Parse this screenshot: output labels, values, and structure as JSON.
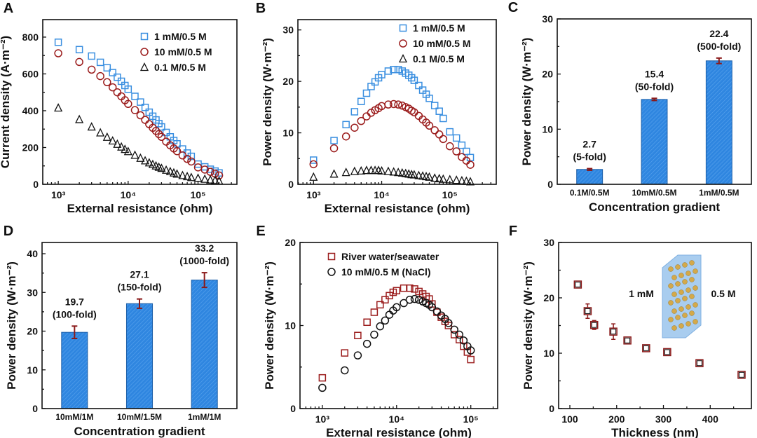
{
  "colors": {
    "blue": "#3a8fe0",
    "red": "#9b1c1c",
    "black": "#111111",
    "bar": "#2f86e0",
    "error": "#8b1a1a"
  },
  "chart_data": [
    {
      "panel": "A",
      "type": "scatter",
      "xscale": "log",
      "xlabel": "External resistance (ohm)",
      "ylabel": "Current density (A·m⁻²)",
      "xlim": [
        600,
        360000
      ],
      "ylim": [
        0,
        895
      ],
      "xticks": [
        {
          "v": 1000,
          "label": "10³"
        },
        {
          "v": 10000,
          "label": "10⁴"
        },
        {
          "v": 100000,
          "label": "10⁵"
        }
      ],
      "yticks": [
        {
          "v": 0,
          "label": "0"
        },
        {
          "v": 200,
          "label": "200"
        },
        {
          "v": 400,
          "label": "400"
        },
        {
          "v": 600,
          "label": "600"
        },
        {
          "v": 800,
          "label": "800"
        }
      ],
      "legend_position": "top-right",
      "x": [
        1000,
        2000,
        3000,
        4000,
        5000,
        6000,
        7000,
        8000,
        9000,
        10000,
        12500,
        15000,
        17500,
        20000,
        22500,
        25000,
        27500,
        30000,
        35000,
        40000,
        45000,
        50000,
        60000,
        70000,
        80000,
        100000,
        125000,
        150000,
        175000,
        200000
      ],
      "series": [
        {
          "name": "1 mM/0.5 M",
          "marker": "square",
          "color": "blue",
          "values": [
            772,
            732,
            697,
            663,
            633,
            607,
            582,
            560,
            537,
            517,
            478,
            447,
            418,
            392,
            370,
            350,
            330,
            312,
            282,
            258,
            238,
            220,
            192,
            170,
            152,
            110,
            95,
            82,
            72,
            62
          ]
        },
        {
          "name": "10 mM/0.5 M",
          "marker": "circle",
          "color": "red",
          "values": [
            712,
            665,
            623,
            588,
            555,
            527,
            500,
            478,
            457,
            437,
            403,
            375,
            350,
            327,
            307,
            290,
            273,
            258,
            232,
            212,
            195,
            180,
            157,
            138,
            124,
            92,
            80,
            68,
            58,
            48
          ]
        },
        {
          "name": "0.1 M/0.5 M",
          "marker": "triangle",
          "color": "black",
          "values": [
            415,
            352,
            312,
            280,
            256,
            236,
            218,
            203,
            190,
            178,
            158,
            142,
            128,
            117,
            108,
            100,
            93,
            87,
            77,
            69,
            62,
            56,
            48,
            42,
            37,
            33,
            28,
            24,
            21,
            18
          ]
        }
      ]
    },
    {
      "panel": "B",
      "type": "scatter",
      "xscale": "log",
      "xlabel": "External resistance (ohm)",
      "ylabel": "Power density (W·m⁻²)",
      "xlim": [
        590,
        480000
      ],
      "ylim": [
        0,
        32
      ],
      "xticks": [
        {
          "v": 1000,
          "label": "10³"
        },
        {
          "v": 10000,
          "label": "10⁴"
        },
        {
          "v": 100000,
          "label": "10⁵"
        }
      ],
      "yticks": [
        {
          "v": 0,
          "label": "0"
        },
        {
          "v": 10,
          "label": "10"
        },
        {
          "v": 20,
          "label": "20"
        },
        {
          "v": 30,
          "label": "30"
        }
      ],
      "legend_position": "top-right",
      "x": [
        1000,
        2000,
        3000,
        4000,
        5000,
        6000,
        7000,
        8000,
        9000,
        10000,
        12500,
        15000,
        17500,
        20000,
        22500,
        25000,
        27500,
        30000,
        35000,
        40000,
        45000,
        50000,
        60000,
        70000,
        80000,
        100000,
        125000,
        150000,
        175000,
        200000
      ],
      "series": [
        {
          "name": "1 mM/0.5 M",
          "marker": "square",
          "color": "blue",
          "values": [
            4.7,
            8.5,
            11.6,
            14.1,
            16.1,
            17.7,
            19.0,
            19.9,
            20.7,
            21.3,
            22.0,
            22.3,
            22.3,
            22.0,
            21.6,
            21.2,
            20.7,
            20.2,
            19.2,
            18.3,
            17.5,
            16.7,
            15.3,
            14.2,
            12.8,
            10.2,
            9.0,
            7.6,
            6.4,
            5.2
          ]
        },
        {
          "name": "10 mM/0.5 M",
          "marker": "circle",
          "color": "red",
          "values": [
            3.9,
            7.0,
            9.3,
            11.0,
            12.3,
            13.2,
            13.9,
            14.4,
            14.8,
            15.2,
            15.5,
            15.6,
            15.5,
            15.3,
            15.0,
            14.7,
            14.3,
            14.0,
            13.3,
            12.6,
            12.0,
            11.4,
            10.5,
            9.7,
            8.8,
            7.4,
            6.4,
            5.3,
            4.6,
            3.8
          ]
        },
        {
          "name": "0.1 M/0.5 M",
          "marker": "triangle",
          "color": "black",
          "values": [
            1.4,
            2.0,
            2.3,
            2.5,
            2.6,
            2.7,
            2.7,
            2.7,
            2.7,
            2.6,
            2.5,
            2.4,
            2.3,
            2.2,
            2.1,
            2.0,
            1.9,
            1.85,
            1.7,
            1.6,
            1.5,
            1.4,
            1.2,
            1.1,
            1.0,
            0.9,
            0.8,
            0.7,
            0.6,
            0.5
          ]
        }
      ]
    },
    {
      "panel": "C",
      "type": "bar",
      "xlabel": "Concentration gradient",
      "ylabel": "Power density (W·m⁻²)",
      "ylim": [
        0,
        30
      ],
      "yticks": [
        {
          "v": 0,
          "label": "0"
        },
        {
          "v": 10,
          "label": "10"
        },
        {
          "v": 20,
          "label": "20"
        },
        {
          "v": 30,
          "label": "30"
        }
      ],
      "categories": [
        "0.1M/0.5M",
        "10mM/0.5M",
        "1mM/0.5M"
      ],
      "values": [
        2.7,
        15.4,
        22.4
      ],
      "errors": [
        0.15,
        0.2,
        0.5
      ],
      "value_labels": [
        "2.7",
        "15.4",
        "22.4"
      ],
      "fold_labels": [
        "(5-fold)",
        "(50-fold)",
        "(500-fold)"
      ]
    },
    {
      "panel": "D",
      "type": "bar",
      "xlabel": "Concentration gradient",
      "ylabel": "Power density (W·m⁻²)",
      "ylim": [
        0,
        42.9
      ],
      "yticks": [
        {
          "v": 0,
          "label": "0"
        },
        {
          "v": 10,
          "label": "10"
        },
        {
          "v": 20,
          "label": "20"
        },
        {
          "v": 30,
          "label": "30"
        },
        {
          "v": 40,
          "label": "40"
        }
      ],
      "categories": [
        "10mM/1M",
        "10mM/1.5M",
        "1mM/1M"
      ],
      "values": [
        19.7,
        27.1,
        33.2
      ],
      "errors": [
        1.6,
        1.2,
        1.9
      ],
      "value_labels": [
        "19.7",
        "27.1",
        "33.2"
      ],
      "fold_labels": [
        "(100-fold)",
        "(150-fold)",
        "(1000-fold)"
      ]
    },
    {
      "panel": "E",
      "type": "scatter",
      "xscale": "log",
      "xlabel": "External resistance (ohm)",
      "ylabel": "Power density (W·m⁻²)",
      "xlim": [
        500,
        230000
      ],
      "ylim": [
        0,
        20
      ],
      "xticks": [
        {
          "v": 1000,
          "label": "10³"
        },
        {
          "v": 10000,
          "label": "10⁴"
        },
        {
          "v": 100000,
          "label": "10⁵"
        }
      ],
      "yticks": [
        {
          "v": 0,
          "label": "0"
        },
        {
          "v": 10,
          "label": "10"
        },
        {
          "v": 20,
          "label": "20"
        }
      ],
      "legend_position": "top-right",
      "x": [
        1000,
        2000,
        3000,
        4000,
        5000,
        6000,
        7000,
        8000,
        9000,
        10000,
        12500,
        15000,
        17500,
        20000,
        22500,
        25000,
        27500,
        30000,
        35000,
        40000,
        45000,
        50000,
        60000,
        70000,
        80000,
        90000,
        100000
      ],
      "series": [
        {
          "name": "River water/seawater",
          "marker": "square",
          "color": "red",
          "values": [
            3.7,
            6.7,
            8.8,
            10.4,
            11.6,
            12.5,
            13.1,
            13.6,
            14.0,
            14.2,
            14.5,
            14.5,
            14.4,
            14.1,
            13.8,
            13.5,
            13.2,
            12.6,
            11.6,
            11.0,
            10.5,
            10.0,
            8.9,
            8.3,
            7.5,
            6.8,
            5.9
          ]
        },
        {
          "name": "10 mM/0.5 M (NaCl)",
          "marker": "circle",
          "color": "black",
          "values": [
            2.5,
            4.6,
            6.4,
            7.8,
            8.9,
            9.9,
            10.6,
            11.3,
            11.8,
            12.2,
            12.7,
            13.1,
            13.2,
            13.1,
            12.9,
            12.7,
            12.5,
            12.2,
            11.7,
            11.2,
            10.8,
            10.3,
            9.5,
            8.9,
            8.2,
            7.5,
            7.0
          ]
        }
      ]
    },
    {
      "panel": "F",
      "type": "scatter",
      "xscale": "linear",
      "xlabel": "Thickness (nm)",
      "ylabel": "Power density (W·m⁻²)",
      "xlim": [
        76,
        488
      ],
      "ylim": [
        0,
        30
      ],
      "xticks": [
        {
          "v": 100,
          "label": "100"
        },
        {
          "v": 200,
          "label": "200"
        },
        {
          "v": 300,
          "label": "300"
        },
        {
          "v": 400,
          "label": "400"
        }
      ],
      "yticks": [
        {
          "v": 0,
          "label": "0"
        },
        {
          "v": 10,
          "label": "10"
        },
        {
          "v": 20,
          "label": "20"
        },
        {
          "v": 30,
          "label": "30"
        }
      ],
      "x": [
        117,
        138,
        152,
        193,
        223,
        263,
        308,
        377,
        467
      ],
      "series": [
        {
          "name": "Power density",
          "marker": "square",
          "color": "black",
          "values": [
            22.4,
            17.6,
            15.1,
            13.9,
            12.3,
            10.9,
            10.2,
            8.2,
            6.1
          ],
          "errors": [
            0.3,
            1.3,
            0.8,
            1.4,
            0.4,
            0.3,
            0.2,
            0.2,
            0.2
          ]
        }
      ],
      "annotations": [
        "1 mM",
        "0.5 M"
      ]
    }
  ]
}
